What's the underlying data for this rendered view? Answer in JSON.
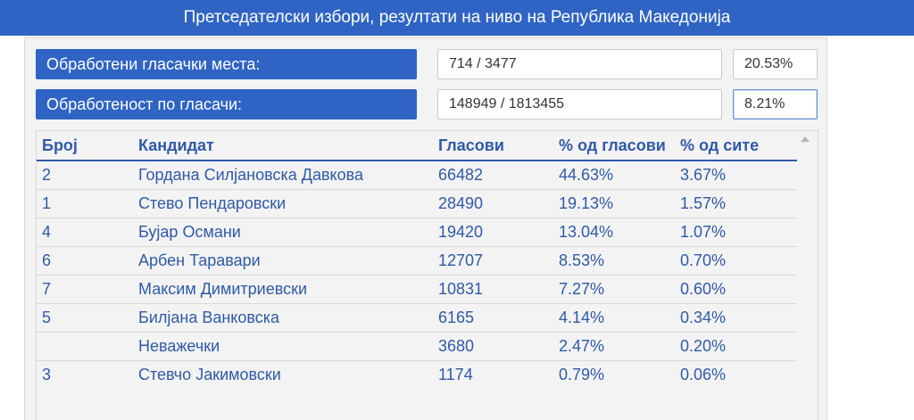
{
  "header": {
    "title": "Претседателски избори, резултати на ниво на Република Македонија"
  },
  "stats": {
    "polling_stations": {
      "label": "Обработени гласачки места:",
      "value": "714 / 3477",
      "percent": "20.53%"
    },
    "voters": {
      "label": "Обработеност по гласачи:",
      "value": "148949 / 1813455",
      "percent": "8.21%"
    }
  },
  "table": {
    "columns": [
      "Број",
      "Кандидат",
      "Гласови",
      "% од гласови",
      "% од сите"
    ],
    "rows": [
      {
        "number": "2",
        "candidate": "Гордана Силјановска Давкова",
        "votes": "66482",
        "pct_votes": "44.63%",
        "pct_all": "3.67%"
      },
      {
        "number": "1",
        "candidate": "Стево Пендаровски",
        "votes": "28490",
        "pct_votes": "19.13%",
        "pct_all": "1.57%"
      },
      {
        "number": "4",
        "candidate": "Бујар Османи",
        "votes": "19420",
        "pct_votes": "13.04%",
        "pct_all": "1.07%"
      },
      {
        "number": "6",
        "candidate": "Арбен Таравари",
        "votes": "12707",
        "pct_votes": "8.53%",
        "pct_all": "0.70%"
      },
      {
        "number": "7",
        "candidate": "Максим Димитриевски",
        "votes": "10831",
        "pct_votes": "7.27%",
        "pct_all": "0.60%"
      },
      {
        "number": "5",
        "candidate": "Билјана Ванковска",
        "votes": "6165",
        "pct_votes": "4.14%",
        "pct_all": "0.34%"
      },
      {
        "number": "",
        "candidate": "Неважечки",
        "votes": "3680",
        "pct_votes": "2.47%",
        "pct_all": "0.20%"
      },
      {
        "number": "3",
        "candidate": "Стевчо Јакимовски",
        "votes": "1174",
        "pct_votes": "0.79%",
        "pct_all": "0.06%"
      }
    ]
  },
  "colors": {
    "accent": "#2f64c4",
    "text_blue": "#2f5aa8",
    "panel_bg": "#f3f3f3"
  },
  "icons": {
    "scroll_up": "triangle-up-icon"
  }
}
